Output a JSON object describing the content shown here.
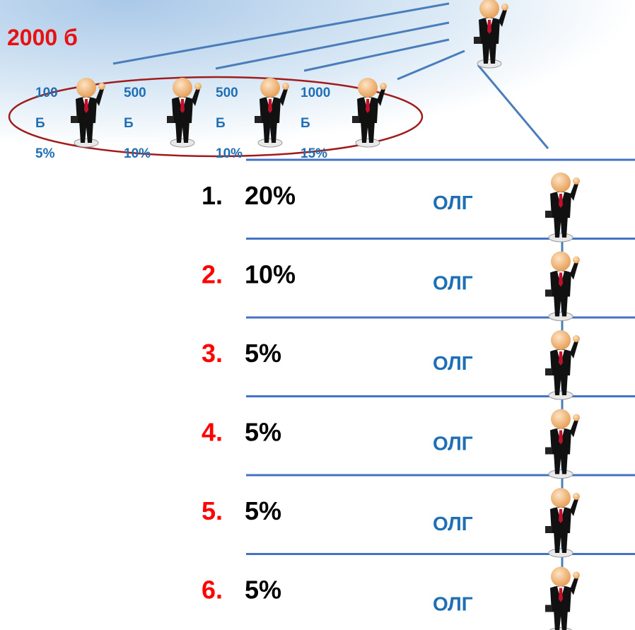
{
  "header": {
    "title": "2000 б"
  },
  "members": [
    {
      "amount": "100",
      "unit": "Б",
      "percent": "5%"
    },
    {
      "amount": "500",
      "unit": "Б",
      "percent": "10%"
    },
    {
      "amount": "500",
      "unit": "Б",
      "percent": "10%"
    },
    {
      "amount": "1000",
      "unit": "Б",
      "percent": "15%"
    }
  ],
  "levels": [
    {
      "number": "1.",
      "number_color": "#000000",
      "percent": "20%",
      "label": "ОЛГ"
    },
    {
      "number": "2.",
      "number_color": "#ff0000",
      "percent": "10%",
      "label": "ОЛГ"
    },
    {
      "number": "3.",
      "number_color": "#ff0000",
      "percent": "5%",
      "label": "ОЛГ"
    },
    {
      "number": "4.",
      "number_color": "#ff0000",
      "percent": "5%",
      "label": "ОЛГ"
    },
    {
      "number": "5.",
      "number_color": "#ff0000",
      "percent": "5%",
      "label": "ОЛГ"
    },
    {
      "number": "6.",
      "number_color": "#ff0000",
      "percent": "5%",
      "label": "ОЛГ"
    }
  ]
}
